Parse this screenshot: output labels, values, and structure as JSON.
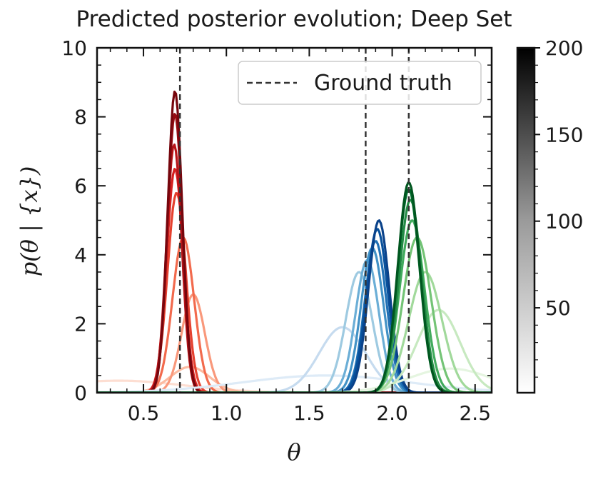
{
  "chart_data": {
    "type": "line",
    "title": "Predicted posterior evolution; Deep Set",
    "xlabel": "θ",
    "ylabel": "p(θ | {x})",
    "xlim": [
      0.22,
      2.6
    ],
    "ylim": [
      0,
      10
    ],
    "xticks": [
      0.5,
      1.0,
      1.5,
      2.0,
      2.5
    ],
    "xtick_labels": [
      "0.5",
      "1.0",
      "1.5",
      "2.0",
      "2.5"
    ],
    "yticks": [
      0,
      2,
      4,
      6,
      8,
      10
    ],
    "ytick_labels": [
      "0",
      "2",
      "4",
      "6",
      "8",
      "10"
    ],
    "legend": {
      "label": "Ground truth",
      "position": "top-right"
    },
    "ground_truth": [
      0.72,
      1.84,
      2.1
    ],
    "colorbar": {
      "range": [
        1,
        200
      ],
      "ticks": [
        50,
        100,
        150,
        200
      ],
      "tick_labels": [
        "50",
        "100",
        "150",
        "200"
      ],
      "colormap": "greys"
    },
    "families": [
      {
        "color_map": "reds",
        "colors": [
          "#fdded2",
          "#fcbba1",
          "#f9987b",
          "#f26a4d",
          "#e5412f",
          "#d52120",
          "#b81418",
          "#950b11",
          "#76060d"
        ],
        "curves": [
          {
            "mu": 0.35,
            "sigma": 0.4,
            "peak": 0.35
          },
          {
            "mu": 0.78,
            "sigma": 0.12,
            "peak": 0.75
          },
          {
            "mu": 0.8,
            "sigma": 0.07,
            "peak": 2.85
          },
          {
            "mu": 0.74,
            "sigma": 0.065,
            "peak": 4.5
          },
          {
            "mu": 0.7,
            "sigma": 0.055,
            "peak": 5.8
          },
          {
            "mu": 0.69,
            "sigma": 0.05,
            "peak": 6.5
          },
          {
            "mu": 0.685,
            "sigma": 0.046,
            "peak": 7.2
          },
          {
            "mu": 0.69,
            "sigma": 0.045,
            "peak": 8.1
          },
          {
            "mu": 0.69,
            "sigma": 0.044,
            "peak": 8.75
          }
        ]
      },
      {
        "color_map": "blues",
        "colors": [
          "#deebf7",
          "#c6dbef",
          "#9ecae1",
          "#6baed6",
          "#4292c6",
          "#2171b5",
          "#08519c",
          "#0a428a"
        ],
        "curves": [
          {
            "mu": 1.6,
            "sigma": 0.5,
            "peak": 0.5
          },
          {
            "mu": 1.7,
            "sigma": 0.14,
            "peak": 1.9
          },
          {
            "mu": 1.8,
            "sigma": 0.08,
            "peak": 3.5
          },
          {
            "mu": 1.85,
            "sigma": 0.07,
            "peak": 3.85
          },
          {
            "mu": 1.88,
            "sigma": 0.068,
            "peak": 4.2
          },
          {
            "mu": 1.9,
            "sigma": 0.065,
            "peak": 4.4
          },
          {
            "mu": 1.91,
            "sigma": 0.065,
            "peak": 4.75
          },
          {
            "mu": 1.92,
            "sigma": 0.063,
            "peak": 5.0
          }
        ]
      },
      {
        "color_map": "greens",
        "colors": [
          "#e5f5e0",
          "#c7e9c0",
          "#a1d99b",
          "#74c476",
          "#41ab5d",
          "#238b45",
          "#006d2c",
          "#00561f"
        ],
        "curves": [
          {
            "mu": 2.35,
            "sigma": 0.25,
            "peak": 0.7
          },
          {
            "mu": 2.28,
            "sigma": 0.13,
            "peak": 2.4
          },
          {
            "mu": 2.2,
            "sigma": 0.1,
            "peak": 3.5
          },
          {
            "mu": 2.15,
            "sigma": 0.085,
            "peak": 4.5
          },
          {
            "mu": 2.12,
            "sigma": 0.075,
            "peak": 5.0
          },
          {
            "mu": 2.11,
            "sigma": 0.068,
            "peak": 5.6
          },
          {
            "mu": 2.1,
            "sigma": 0.066,
            "peak": 5.9
          },
          {
            "mu": 2.1,
            "sigma": 0.066,
            "peak": 6.1
          }
        ]
      }
    ]
  }
}
